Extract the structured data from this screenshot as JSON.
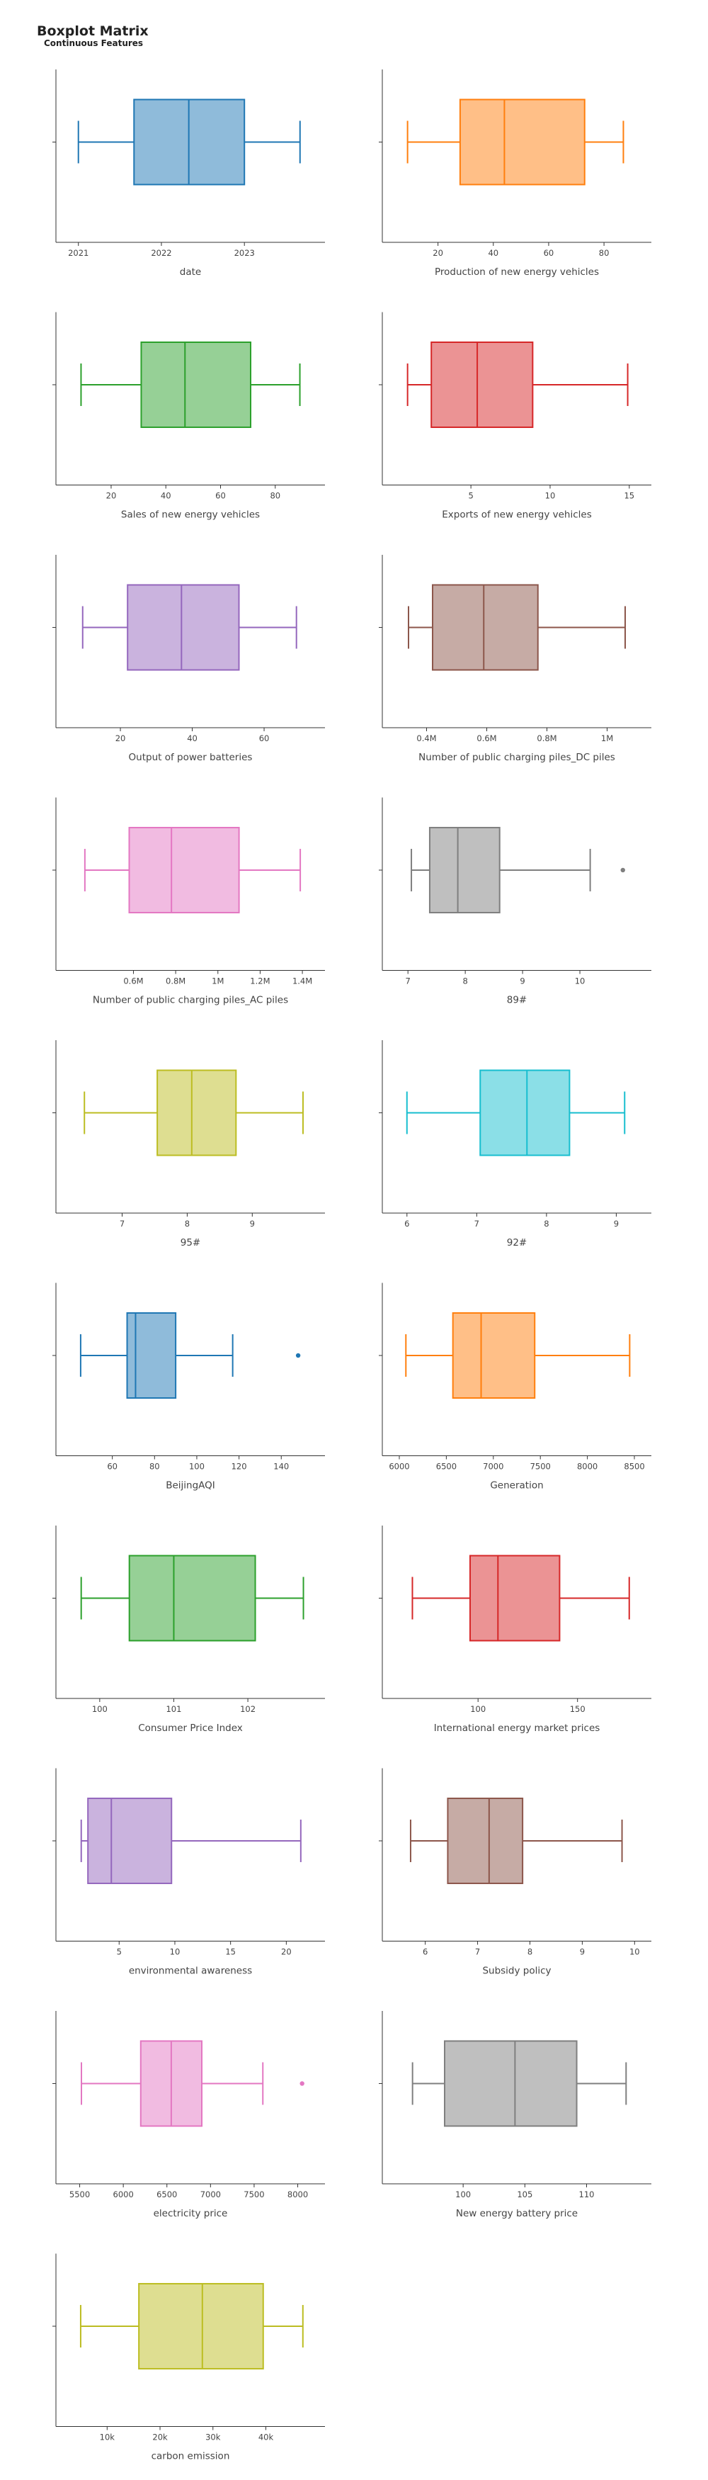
{
  "title": "Boxplot Matrix",
  "subtitle": "Continuous Features",
  "chart_data": {
    "type": "boxplot",
    "grid": false,
    "panels": [
      {
        "xlabel": "date",
        "color": "#1f77b4",
        "xlim": [
          2020.9,
          2023.8
        ],
        "ticks": [
          2021,
          2022,
          2023
        ],
        "tick_labels": [
          "2021",
          "2022",
          "2023"
        ],
        "whisker_low": 2021.0,
        "q1": 2021.67,
        "median": 2022.33,
        "q3": 2023.0,
        "whisker_high": 2023.67,
        "outliers": []
      },
      {
        "xlabel": "Production of new energy vehicles",
        "color": "#ff7f0e",
        "xlim": [
          5,
          92
        ],
        "ticks": [
          20,
          40,
          60,
          80
        ],
        "tick_labels": [
          "20",
          "40",
          "60",
          "80"
        ],
        "whisker_low": 9,
        "q1": 28,
        "median": 44,
        "q3": 73,
        "whisker_high": 87,
        "outliers": []
      },
      {
        "xlabel": "Sales of new energy vehicles",
        "color": "#2ca02c",
        "xlim": [
          5,
          93
        ],
        "ticks": [
          20,
          40,
          60,
          80
        ],
        "tick_labels": [
          "20",
          "40",
          "60",
          "80"
        ],
        "whisker_low": 9,
        "q1": 31,
        "median": 47,
        "q3": 71,
        "whisker_high": 89,
        "outliers": []
      },
      {
        "xlabel": "Exports of new energy vehicles",
        "color": "#d62728",
        "xlim": [
          0.3,
          15.5
        ],
        "ticks": [
          5,
          10,
          15
        ],
        "tick_labels": [
          "5",
          "10",
          "15"
        ],
        "whisker_low": 1.0,
        "q1": 2.5,
        "median": 5.4,
        "q3": 8.9,
        "whisker_high": 14.9,
        "outliers": []
      },
      {
        "xlabel": "Output of power batteries",
        "color": "#9467bd",
        "xlim": [
          6,
          73
        ],
        "ticks": [
          20,
          40,
          60
        ],
        "tick_labels": [
          "20",
          "40",
          "60"
        ],
        "whisker_low": 9.5,
        "q1": 22,
        "median": 37,
        "q3": 53,
        "whisker_high": 69,
        "outliers": []
      },
      {
        "xlabel": "Number of public charging piles_DC piles",
        "color": "#8c564b",
        "xlim": [
          0.3,
          1.1
        ],
        "ticks": [
          0.4,
          0.6,
          0.8,
          1.0
        ],
        "tick_labels": [
          "0.4M",
          "0.6M",
          "0.8M",
          "1M"
        ],
        "whisker_low": 0.34,
        "q1": 0.42,
        "median": 0.59,
        "q3": 0.77,
        "whisker_high": 1.06,
        "outliers": []
      },
      {
        "xlabel": "Number of public charging piles_AC piles",
        "color": "#e377c2",
        "xlim": [
          0.3,
          1.44
        ],
        "ticks": [
          0.6,
          0.8,
          1.0,
          1.2,
          1.4
        ],
        "tick_labels": [
          "0.6M",
          "0.8M",
          "1M",
          "1.2M",
          "1.4M"
        ],
        "whisker_low": 0.37,
        "q1": 0.58,
        "median": 0.78,
        "q3": 1.1,
        "whisker_high": 1.39,
        "outliers": []
      },
      {
        "xlabel": "89#",
        "color": "#7f7f7f",
        "xlim": [
          6.8,
          11.0
        ],
        "ticks": [
          7,
          8,
          9,
          10
        ],
        "tick_labels": [
          "7",
          "8",
          "9",
          "10"
        ],
        "whisker_low": 7.06,
        "q1": 7.38,
        "median": 7.87,
        "q3": 8.6,
        "whisker_high": 10.18,
        "outliers": [
          10.75
        ]
      },
      {
        "xlabel": "95#",
        "color": "#bcbd22",
        "xlim": [
          6.2,
          9.9
        ],
        "ticks": [
          7,
          8,
          9
        ],
        "tick_labels": [
          "7",
          "8",
          "9"
        ],
        "whisker_low": 6.42,
        "q1": 7.54,
        "median": 8.07,
        "q3": 8.75,
        "whisker_high": 9.78,
        "outliers": []
      },
      {
        "xlabel": "92#",
        "color": "#17becf",
        "xlim": [
          5.85,
          9.3
        ],
        "ticks": [
          6,
          7,
          8,
          9
        ],
        "tick_labels": [
          "6",
          "7",
          "8",
          "9"
        ],
        "whisker_low": 6.0,
        "q1": 7.05,
        "median": 7.72,
        "q3": 8.33,
        "whisker_high": 9.12,
        "outliers": []
      },
      {
        "xlabel": "BeijingAQI",
        "color": "#1f77b4",
        "xlim": [
          40,
          154
        ],
        "ticks": [
          60,
          80,
          100,
          120,
          140
        ],
        "tick_labels": [
          "60",
          "80",
          "100",
          "120",
          "140"
        ],
        "whisker_low": 45,
        "q1": 67,
        "median": 71,
        "q3": 90,
        "whisker_high": 117,
        "outliers": [
          148
        ]
      },
      {
        "xlabel": "Generation",
        "color": "#ff7f0e",
        "xlim": [
          5970,
          8530
        ],
        "ticks": [
          6000,
          6500,
          7000,
          7500,
          8000,
          8500
        ],
        "tick_labels": [
          "6000",
          "6500",
          "7000",
          "7500",
          "8000",
          "8500"
        ],
        "whisker_low": 6070,
        "q1": 6570,
        "median": 6870,
        "q3": 7440,
        "whisker_high": 8450,
        "outliers": []
      },
      {
        "xlabel": "Consumer Price Index",
        "color": "#2ca02c",
        "xlim": [
          99.6,
          102.85
        ],
        "ticks": [
          100,
          101,
          102
        ],
        "tick_labels": [
          "100",
          "101",
          "102"
        ],
        "whisker_low": 99.75,
        "q1": 100.4,
        "median": 101.0,
        "q3": 102.1,
        "whisker_high": 102.75,
        "outliers": []
      },
      {
        "xlabel": "International energy market prices",
        "color": "#d62728",
        "xlim": [
          59,
          180
        ],
        "ticks": [
          100,
          150
        ],
        "tick_labels": [
          "100",
          "150"
        ],
        "whisker_low": 67,
        "q1": 96,
        "median": 110,
        "q3": 141,
        "whisker_high": 176,
        "outliers": []
      },
      {
        "xlabel": "environmental awareness",
        "color": "#9467bd",
        "xlim": [
          0.6,
          22.2
        ],
        "ticks": [
          5,
          10,
          15,
          20
        ],
        "tick_labels": [
          "5",
          "10",
          "15",
          "20"
        ],
        "whisker_low": 1.6,
        "q1": 2.2,
        "median": 4.3,
        "q3": 9.7,
        "whisker_high": 21.3,
        "outliers": []
      },
      {
        "xlabel": "Subsidy policy",
        "color": "#8c564b",
        "xlim": [
          5.45,
          10.05
        ],
        "ticks": [
          6,
          7,
          8,
          9,
          10
        ],
        "tick_labels": [
          "6",
          "7",
          "8",
          "9",
          "10"
        ],
        "whisker_low": 5.72,
        "q1": 6.43,
        "median": 7.22,
        "q3": 7.86,
        "whisker_high": 9.76,
        "outliers": []
      },
      {
        "xlabel": "electricity price",
        "color": "#e377c2",
        "xlim": [
          5390,
          8150
        ],
        "ticks": [
          5500,
          6000,
          6500,
          7000,
          7500,
          8000
        ],
        "tick_labels": [
          "5500",
          "6000",
          "6500",
          "7000",
          "7500",
          "8000"
        ],
        "whisker_low": 5520,
        "q1": 6200,
        "median": 6550,
        "q3": 6900,
        "whisker_high": 7600,
        "outliers": [
          8050
        ]
      },
      {
        "xlabel": "New energy battery price",
        "color": "#7f7f7f",
        "xlim": [
          94.6,
          114.1
        ],
        "ticks": [
          100,
          105,
          110
        ],
        "tick_labels": [
          "100",
          "105",
          "110"
        ],
        "whisker_low": 95.9,
        "q1": 98.5,
        "median": 104.2,
        "q3": 109.2,
        "whisker_high": 113.2,
        "outliers": []
      },
      {
        "xlabel": "carbon emission",
        "color": "#bcbd22",
        "xlim": [
          3000,
          48500
        ],
        "ticks": [
          10000,
          20000,
          30000,
          40000
        ],
        "tick_labels": [
          "10k",
          "20k",
          "30k",
          "40k"
        ],
        "whisker_low": 5000,
        "q1": 16000,
        "median": 28000,
        "q3": 39500,
        "whisker_high": 47000,
        "outliers": []
      }
    ]
  }
}
